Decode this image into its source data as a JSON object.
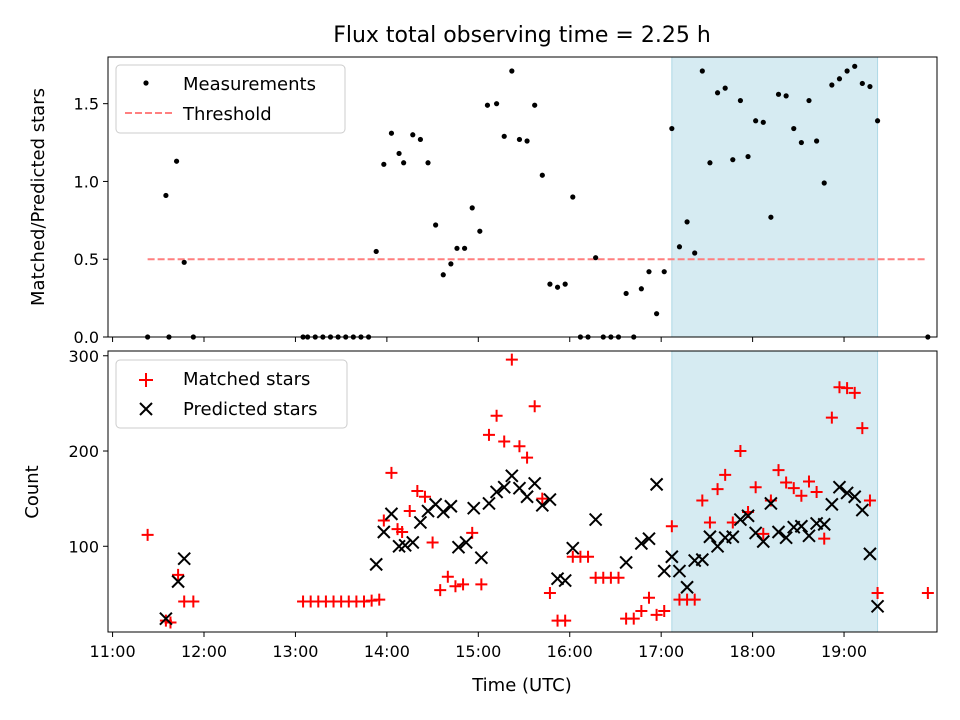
{
  "title": "Flux total observing time = 2.25 h",
  "xlabel": "Time (UTC)",
  "x_ticks": [
    "11:00",
    "12:00",
    "13:00",
    "14:00",
    "15:00",
    "16:00",
    "17:00",
    "18:00",
    "19:00"
  ],
  "colors": {
    "measurement": "#000000",
    "threshold": "#ff7f7f",
    "matched": "#ff0000",
    "predicted": "#000000",
    "highlight": "#add8e6"
  },
  "chart_data": [
    {
      "type": "scatter",
      "ylabel": "Matched/Predicted stars",
      "xlim": [
        "10:57",
        "20:01"
      ],
      "ylim": [
        0,
        1.8
      ],
      "y_ticks": [
        0.0,
        0.5,
        1.0,
        1.5
      ],
      "y_tick_labels": [
        "0.0",
        "0.5",
        "1.0",
        "1.5"
      ],
      "highlight_span": [
        "17:07",
        "19:22"
      ],
      "legend": {
        "position": "upper-left",
        "measurements_label": "Measurements",
        "threshold_label": "Threshold"
      },
      "threshold": {
        "value": 0.5,
        "x_range": [
          "11:23",
          "19:54"
        ]
      },
      "series": [
        {
          "name": "Measurements",
          "points": [
            [
              "11:23",
              0
            ],
            [
              "11:35",
              0.91
            ],
            [
              "11:37",
              0
            ],
            [
              "11:42",
              1.13
            ],
            [
              "11:47",
              0.48
            ],
            [
              "11:53",
              0
            ],
            [
              "13:05",
              0
            ],
            [
              "13:08",
              0
            ],
            [
              "13:13",
              0
            ],
            [
              "13:18",
              0
            ],
            [
              "13:23",
              0
            ],
            [
              "13:28",
              0
            ],
            [
              "13:33",
              0
            ],
            [
              "13:38",
              0
            ],
            [
              "13:43",
              0
            ],
            [
              "13:48",
              0
            ],
            [
              "13:53",
              0.55
            ],
            [
              "13:58",
              1.11
            ],
            [
              "14:03",
              1.31
            ],
            [
              "14:08",
              1.18
            ],
            [
              "14:11",
              1.12
            ],
            [
              "14:17",
              1.3
            ],
            [
              "14:22",
              1.27
            ],
            [
              "14:27",
              1.12
            ],
            [
              "14:32",
              0.72
            ],
            [
              "14:37",
              0.4
            ],
            [
              "14:42",
              0.47
            ],
            [
              "14:46",
              0.57
            ],
            [
              "14:51",
              0.57
            ],
            [
              "14:56",
              0.83
            ],
            [
              "15:01",
              0.68
            ],
            [
              "15:06",
              1.49
            ],
            [
              "15:12",
              1.5
            ],
            [
              "15:17",
              1.29
            ],
            [
              "15:22",
              1.71
            ],
            [
              "15:27",
              1.27
            ],
            [
              "15:32",
              1.26
            ],
            [
              "15:37",
              1.49
            ],
            [
              "15:42",
              1.04
            ],
            [
              "15:47",
              0.34
            ],
            [
              "15:52",
              0.32
            ],
            [
              "15:57",
              0.34
            ],
            [
              "16:02",
              0.9
            ],
            [
              "16:07",
              0
            ],
            [
              "16:12",
              0
            ],
            [
              "16:17",
              0.51
            ],
            [
              "16:22",
              0
            ],
            [
              "16:27",
              0
            ],
            [
              "16:32",
              0
            ],
            [
              "16:37",
              0.28
            ],
            [
              "16:42",
              0
            ],
            [
              "16:47",
              0.31
            ],
            [
              "16:52",
              0.42
            ],
            [
              "16:57",
              0.15
            ],
            [
              "17:02",
              0.42
            ],
            [
              "17:07",
              1.34
            ],
            [
              "17:12",
              0.58
            ],
            [
              "17:17",
              0.74
            ],
            [
              "17:22",
              0.54
            ],
            [
              "17:27",
              1.71
            ],
            [
              "17:32",
              1.12
            ],
            [
              "17:37",
              1.57
            ],
            [
              "17:42",
              1.6
            ],
            [
              "17:47",
              1.14
            ],
            [
              "17:52",
              1.52
            ],
            [
              "17:57",
              1.16
            ],
            [
              "18:02",
              1.39
            ],
            [
              "18:07",
              1.38
            ],
            [
              "18:12",
              0.77
            ],
            [
              "18:17",
              1.56
            ],
            [
              "18:22",
              1.55
            ],
            [
              "18:27",
              1.34
            ],
            [
              "18:32",
              1.25
            ],
            [
              "18:37",
              1.52
            ],
            [
              "18:42",
              1.26
            ],
            [
              "18:47",
              0.99
            ],
            [
              "18:52",
              1.62
            ],
            [
              "18:57",
              1.66
            ],
            [
              "19:02",
              1.71
            ],
            [
              "19:07",
              1.74
            ],
            [
              "19:12",
              1.63
            ],
            [
              "19:17",
              1.61
            ],
            [
              "19:22",
              1.39
            ],
            [
              "19:55",
              0
            ]
          ]
        }
      ]
    },
    {
      "type": "scatter",
      "ylabel": "Count",
      "xlim": [
        "10:57",
        "20:01"
      ],
      "ylim": [
        10,
        305
      ],
      "y_ticks": [
        100,
        200,
        300
      ],
      "y_tick_labels": [
        "100",
        "200",
        "300"
      ],
      "highlight_span": [
        "17:07",
        "19:22"
      ],
      "legend": {
        "position": "upper-left"
      },
      "series": [
        {
          "name": "Matched stars",
          "marker": "plus",
          "points": [
            [
              "11:23",
              112
            ],
            [
              "11:35",
              22
            ],
            [
              "11:38",
              20
            ],
            [
              "11:43",
              70
            ],
            [
              "11:47",
              42
            ],
            [
              "11:53",
              42
            ],
            [
              "13:05",
              42
            ],
            [
              "13:10",
              42
            ],
            [
              "13:15",
              42
            ],
            [
              "13:20",
              42
            ],
            [
              "13:25",
              42
            ],
            [
              "13:30",
              42
            ],
            [
              "13:35",
              42
            ],
            [
              "13:40",
              42
            ],
            [
              "13:45",
              42
            ],
            [
              "13:50",
              43
            ],
            [
              "13:55",
              44
            ],
            [
              "13:58",
              127
            ],
            [
              "14:03",
              177
            ],
            [
              "14:07",
              118
            ],
            [
              "14:10",
              115
            ],
            [
              "14:15",
              137
            ],
            [
              "14:20",
              158
            ],
            [
              "14:25",
              152
            ],
            [
              "14:30",
              104
            ],
            [
              "14:35",
              54
            ],
            [
              "14:40",
              68
            ],
            [
              "14:45",
              58
            ],
            [
              "14:50",
              60
            ],
            [
              "14:56",
              114
            ],
            [
              "15:02",
              60
            ],
            [
              "15:07",
              217
            ],
            [
              "15:12",
              237
            ],
            [
              "15:17",
              210
            ],
            [
              "15:22",
              296
            ],
            [
              "15:27",
              205
            ],
            [
              "15:32",
              193
            ],
            [
              "15:37",
              247
            ],
            [
              "15:42",
              150
            ],
            [
              "15:47",
              51
            ],
            [
              "15:52",
              22
            ],
            [
              "15:57",
              22
            ],
            [
              "16:02",
              89
            ],
            [
              "16:07",
              89
            ],
            [
              "16:12",
              89
            ],
            [
              "16:17",
              67
            ],
            [
              "16:22",
              67
            ],
            [
              "16:27",
              67
            ],
            [
              "16:32",
              67
            ],
            [
              "16:37",
              24
            ],
            [
              "16:42",
              24
            ],
            [
              "16:47",
              32
            ],
            [
              "16:52",
              46
            ],
            [
              "16:57",
              28
            ],
            [
              "17:02",
              32
            ],
            [
              "17:07",
              121
            ],
            [
              "17:12",
              44
            ],
            [
              "17:17",
              44
            ],
            [
              "17:22",
              44
            ],
            [
              "17:27",
              148
            ],
            [
              "17:32",
              125
            ],
            [
              "17:37",
              160
            ],
            [
              "17:42",
              175
            ],
            [
              "17:47",
              125
            ],
            [
              "17:52",
              200
            ],
            [
              "17:57",
              136
            ],
            [
              "18:02",
              162
            ],
            [
              "18:07",
              113
            ],
            [
              "18:12",
              148
            ],
            [
              "18:17",
              180
            ],
            [
              "18:22",
              167
            ],
            [
              "18:27",
              161
            ],
            [
              "18:32",
              153
            ],
            [
              "18:37",
              168
            ],
            [
              "18:42",
              157
            ],
            [
              "18:47",
              108
            ],
            [
              "18:52",
              235
            ],
            [
              "18:57",
              267
            ],
            [
              "19:02",
              266
            ],
            [
              "19:07",
              261
            ],
            [
              "19:12",
              224
            ],
            [
              "19:17",
              148
            ],
            [
              "19:22",
              51
            ],
            [
              "19:55",
              51
            ]
          ]
        },
        {
          "name": "Predicted stars",
          "marker": "x",
          "points": [
            [
              "11:35",
              24
            ],
            [
              "11:43",
              63
            ],
            [
              "11:47",
              87
            ],
            [
              "13:53",
              81
            ],
            [
              "13:58",
              115
            ],
            [
              "14:03",
              134
            ],
            [
              "14:08",
              100
            ],
            [
              "14:12",
              101
            ],
            [
              "14:17",
              104
            ],
            [
              "14:22",
              125
            ],
            [
              "14:27",
              137
            ],
            [
              "14:32",
              144
            ],
            [
              "14:37",
              136
            ],
            [
              "14:42",
              142
            ],
            [
              "14:47",
              99
            ],
            [
              "14:52",
              104
            ],
            [
              "14:57",
              140
            ],
            [
              "15:02",
              88
            ],
            [
              "15:07",
              145
            ],
            [
              "15:12",
              157
            ],
            [
              "15:17",
              162
            ],
            [
              "15:22",
              174
            ],
            [
              "15:27",
              161
            ],
            [
              "15:32",
              152
            ],
            [
              "15:37",
              166
            ],
            [
              "15:42",
              143
            ],
            [
              "15:47",
              149
            ],
            [
              "15:52",
              66
            ],
            [
              "15:57",
              64
            ],
            [
              "16:02",
              98
            ],
            [
              "16:17",
              128
            ],
            [
              "16:37",
              83
            ],
            [
              "16:47",
              103
            ],
            [
              "16:52",
              108
            ],
            [
              "16:57",
              165
            ],
            [
              "17:02",
              74
            ],
            [
              "17:07",
              89
            ],
            [
              "17:12",
              74
            ],
            [
              "17:17",
              57
            ],
            [
              "17:22",
              85
            ],
            [
              "17:27",
              86
            ],
            [
              "17:32",
              110
            ],
            [
              "17:37",
              100
            ],
            [
              "17:42",
              109
            ],
            [
              "17:47",
              110
            ],
            [
              "17:52",
              128
            ],
            [
              "17:57",
              132
            ],
            [
              "18:02",
              114
            ],
            [
              "18:07",
              105
            ],
            [
              "18:12",
              145
            ],
            [
              "18:17",
              115
            ],
            [
              "18:22",
              109
            ],
            [
              "18:27",
              120
            ],
            [
              "18:32",
              121
            ],
            [
              "18:37",
              111
            ],
            [
              "18:42",
              124
            ],
            [
              "18:47",
              123
            ],
            [
              "18:52",
              144
            ],
            [
              "18:57",
              162
            ],
            [
              "19:02",
              156
            ],
            [
              "19:07",
              152
            ],
            [
              "19:12",
              138
            ],
            [
              "19:17",
              92
            ],
            [
              "19:22",
              37
            ]
          ]
        }
      ]
    }
  ]
}
